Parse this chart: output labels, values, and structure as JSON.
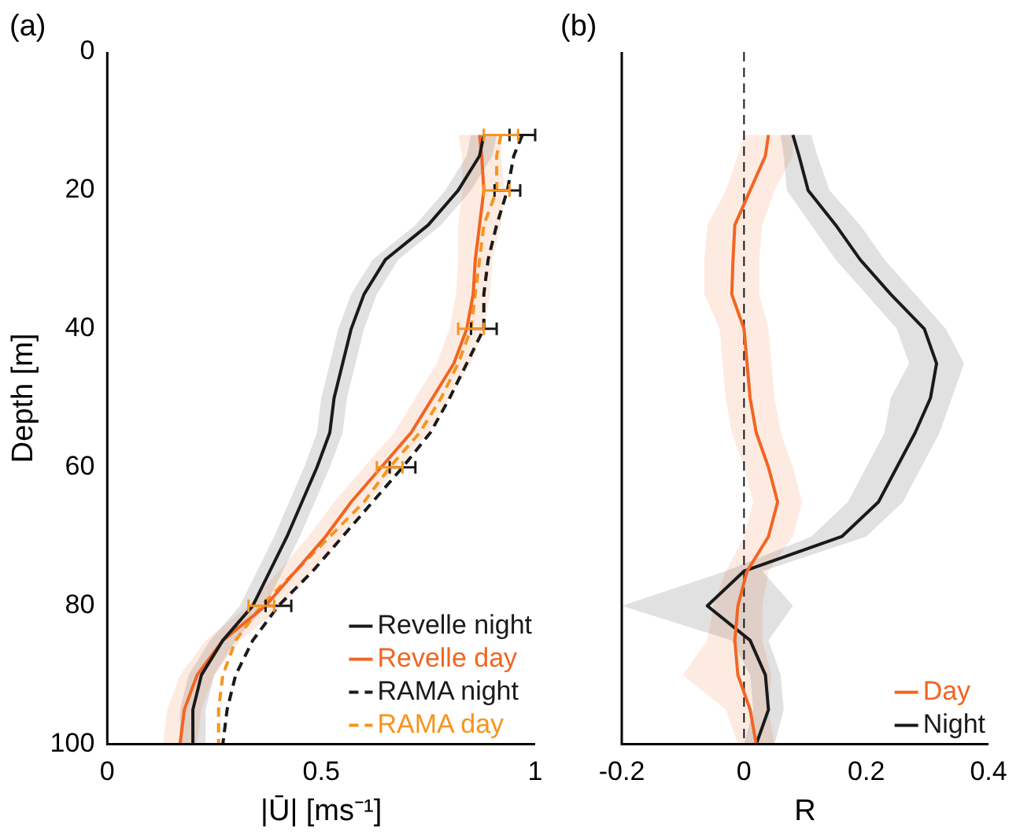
{
  "chart_data": [
    {
      "type": "line",
      "orientation": "horizontal",
      "title": "(a)",
      "xlabel": "|Ū| [ms⁻¹]",
      "ylabel": "Depth [m]",
      "xlim": [
        0,
        1
      ],
      "xticks": [
        0,
        0.5,
        1
      ],
      "ylim": [
        100,
        0
      ],
      "yticks": [
        0,
        20,
        40,
        60,
        80,
        100
      ],
      "legend": "bottom right",
      "grid": false,
      "series": [
        {
          "name": "Revelle night",
          "color": "#1a1a1a",
          "line_style": "solid",
          "x": [
            12,
            15,
            20,
            25,
            30,
            35,
            40,
            45,
            50,
            55,
            60,
            65,
            70,
            75,
            80,
            85,
            90,
            95,
            100
          ],
          "values": [
            0.88,
            0.87,
            0.82,
            0.75,
            0.65,
            0.6,
            0.57,
            0.55,
            0.53,
            0.52,
            0.49,
            0.455,
            0.42,
            0.38,
            0.34,
            0.27,
            0.22,
            0.2,
            0.2
          ],
          "lower": [
            0.85,
            0.84,
            0.79,
            0.72,
            0.62,
            0.57,
            0.54,
            0.52,
            0.5,
            0.49,
            0.46,
            0.425,
            0.39,
            0.35,
            0.31,
            0.24,
            0.19,
            0.17,
            0.17
          ],
          "upper": [
            0.91,
            0.9,
            0.85,
            0.78,
            0.68,
            0.63,
            0.6,
            0.58,
            0.56,
            0.55,
            0.52,
            0.485,
            0.45,
            0.41,
            0.37,
            0.3,
            0.25,
            0.23,
            0.23
          ]
        },
        {
          "name": "Revelle day",
          "color": "#f26522",
          "line_style": "solid",
          "x": [
            12,
            15,
            20,
            25,
            30,
            35,
            40,
            45,
            50,
            55,
            60,
            65,
            70,
            75,
            80,
            85,
            90,
            95,
            100
          ],
          "values": [
            0.87,
            0.875,
            0.88,
            0.87,
            0.86,
            0.855,
            0.84,
            0.81,
            0.76,
            0.71,
            0.64,
            0.57,
            0.51,
            0.44,
            0.37,
            0.27,
            0.21,
            0.18,
            0.17
          ],
          "lower": [
            0.82,
            0.83,
            0.83,
            0.82,
            0.82,
            0.815,
            0.8,
            0.77,
            0.72,
            0.67,
            0.6,
            0.53,
            0.47,
            0.4,
            0.33,
            0.23,
            0.17,
            0.14,
            0.13
          ],
          "upper": [
            0.92,
            0.92,
            0.93,
            0.92,
            0.9,
            0.895,
            0.88,
            0.85,
            0.8,
            0.75,
            0.68,
            0.61,
            0.55,
            0.48,
            0.41,
            0.31,
            0.25,
            0.22,
            0.21
          ]
        },
        {
          "name": "RAMA night",
          "color": "#1a1a1a",
          "line_style": "dashed",
          "x": [
            12,
            15,
            20,
            25,
            30,
            35,
            40,
            45,
            50,
            55,
            60,
            65,
            70,
            75,
            80,
            85,
            90,
            95,
            100
          ],
          "values": [
            0.97,
            0.95,
            0.935,
            0.91,
            0.89,
            0.88,
            0.88,
            0.84,
            0.8,
            0.755,
            0.69,
            0.62,
            0.55,
            0.48,
            0.4,
            0.34,
            0.3,
            0.28,
            0.27
          ],
          "errors": [
            0.03,
            null,
            0.03,
            null,
            null,
            null,
            0.03,
            null,
            null,
            null,
            0.03,
            null,
            null,
            null,
            0.03,
            null,
            null,
            null,
            null
          ]
        },
        {
          "name": "RAMA day",
          "color": "#f7941d",
          "line_style": "dashed",
          "x": [
            12,
            15,
            20,
            25,
            30,
            35,
            40,
            45,
            50,
            55,
            60,
            65,
            70,
            75,
            80,
            85,
            90,
            95,
            100
          ],
          "values": [
            0.92,
            0.91,
            0.91,
            0.88,
            0.87,
            0.86,
            0.85,
            0.82,
            0.78,
            0.73,
            0.66,
            0.6,
            0.52,
            0.44,
            0.36,
            0.3,
            0.27,
            0.26,
            0.26
          ],
          "errors": [
            0.04,
            null,
            0.03,
            null,
            null,
            null,
            0.03,
            null,
            null,
            null,
            0.03,
            null,
            null,
            null,
            0.03,
            null,
            null,
            null,
            null
          ]
        }
      ]
    },
    {
      "type": "line",
      "orientation": "horizontal",
      "title": "(b)",
      "xlabel": "R",
      "xlim": [
        -0.2,
        0.4
      ],
      "xticks": [
        -0.2,
        0,
        0.2,
        0.4
      ],
      "ylim": [
        100,
        0
      ],
      "yticks": [
        0,
        20,
        40,
        60,
        80,
        100
      ],
      "tick_labels": "x",
      "legend": "bottom right",
      "grid": false,
      "ref_lines": [
        {
          "axis": "x",
          "value": 0,
          "line_style": "dashed",
          "color": "#1a1a1a"
        }
      ],
      "series": [
        {
          "name": "Day",
          "color": "#f26522",
          "line_style": "solid",
          "x": [
            12,
            15,
            20,
            25,
            30,
            35,
            40,
            45,
            50,
            55,
            60,
            65,
            70,
            75,
            80,
            85,
            90,
            95,
            100
          ],
          "values": [
            0.04,
            0.035,
            0.01,
            -0.015,
            -0.018,
            -0.02,
            0.0,
            0.005,
            0.01,
            0.02,
            0.04,
            0.055,
            0.04,
            0.005,
            -0.01,
            -0.015,
            -0.01,
            0.01,
            0.02
          ],
          "lower": [
            0.0,
            -0.01,
            -0.03,
            -0.06,
            -0.065,
            -0.065,
            -0.04,
            -0.035,
            -0.03,
            -0.02,
            0.0,
            0.015,
            0.0,
            -0.03,
            -0.05,
            -0.06,
            -0.1,
            -0.03,
            -0.01
          ],
          "upper": [
            0.08,
            0.08,
            0.05,
            0.03,
            0.025,
            0.025,
            0.04,
            0.045,
            0.05,
            0.06,
            0.08,
            0.095,
            0.08,
            0.04,
            0.03,
            0.03,
            0.045,
            0.04,
            0.05
          ]
        },
        {
          "name": "Night",
          "color": "#1a1a1a",
          "line_style": "solid",
          "x": [
            12,
            15,
            20,
            25,
            30,
            35,
            40,
            45,
            50,
            55,
            60,
            65,
            70,
            75,
            80,
            85,
            90,
            95,
            100
          ],
          "values": [
            0.08,
            0.09,
            0.105,
            0.15,
            0.19,
            0.24,
            0.295,
            0.315,
            0.305,
            0.28,
            0.25,
            0.22,
            0.16,
            0.0,
            -0.06,
            0.01,
            0.035,
            0.04,
            0.02
          ],
          "lower": [
            0.06,
            0.065,
            0.07,
            0.11,
            0.15,
            0.2,
            0.25,
            0.27,
            0.24,
            0.23,
            0.2,
            0.17,
            0.11,
            -0.03,
            -0.2,
            -0.02,
            0.01,
            0.015,
            0.0
          ],
          "upper": [
            0.11,
            0.12,
            0.14,
            0.19,
            0.23,
            0.28,
            0.33,
            0.36,
            0.34,
            0.32,
            0.29,
            0.26,
            0.2,
            0.03,
            0.08,
            0.04,
            0.06,
            0.065,
            0.05
          ]
        }
      ]
    }
  ]
}
